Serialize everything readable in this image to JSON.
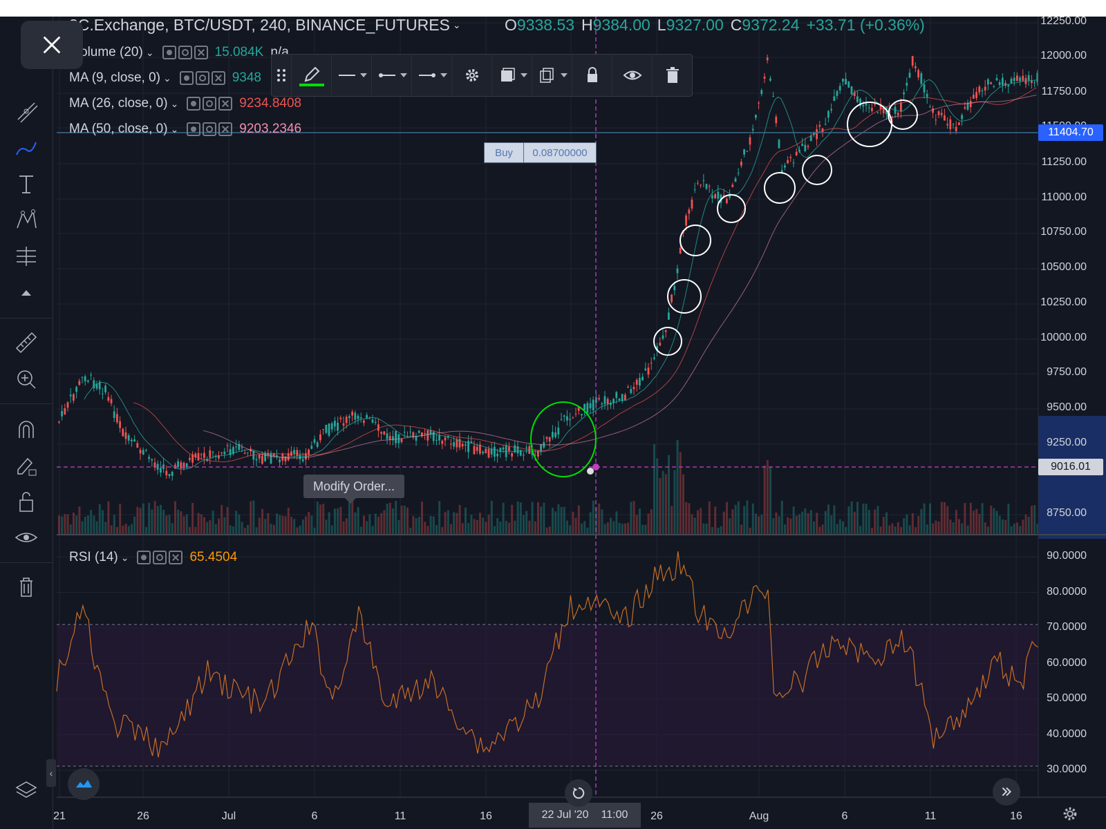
{
  "header": {
    "symbol_title": "3C.Exchange, BTC/USDT, 240, BINANCE_FUTURES",
    "ohlc": {
      "o_label": "O",
      "o": "9338.53",
      "h_label": "H",
      "h": "9384.00",
      "l_label": "L",
      "l": "9327.00",
      "c_label": "C",
      "c": "9372.24",
      "change": "+33.71 (+0.36%)"
    }
  },
  "legends": {
    "volume": {
      "label": "olume (20)",
      "value": "15.084K",
      "value2": "n/a"
    },
    "ma9": {
      "label": "MA (9, close, 0)",
      "value": "9348"
    },
    "ma26": {
      "label": "MA (26, close, 0)",
      "value": "9234.8408"
    },
    "ma50": {
      "label": "MA (50, close, 0)",
      "value": "9203.2346"
    },
    "rsi": {
      "label": "RSI (14)",
      "value": "65.4504"
    }
  },
  "order": {
    "side": "Buy",
    "quantity": "0.08700000",
    "modify_label": "Modify Order..."
  },
  "price_axis": [
    "12250.00",
    "12000.00",
    "11750.00",
    "11500.00",
    "11250.00",
    "11000.00",
    "10750.00",
    "10500.00",
    "10250.00",
    "10000.00",
    "9750.00",
    "9500.00",
    "9250.00",
    "8750.00"
  ],
  "price_tags": {
    "current": "11404.70",
    "order": "9016.01"
  },
  "rsi_axis": [
    "90.0000",
    "80.0000",
    "70.0000",
    "60.0000",
    "50.0000",
    "40.0000",
    "30.0000"
  ],
  "date_axis": [
    "21",
    "26",
    "Jul",
    "6",
    "11",
    "16",
    "26",
    "Aug",
    "6",
    "11",
    "16"
  ],
  "crosshair": {
    "date": "22 Jul '20",
    "time": "11:00"
  },
  "colors": {
    "bull": "#26a69a",
    "bear": "#ef5350",
    "background": "#131722",
    "order_line": "#9c27b0",
    "rsi_line": "#e67e22",
    "highlight_band": "#2962ff",
    "selection_circle": "#00e000"
  },
  "sidebar_tools": [
    "close-icon",
    "crosshair-icon",
    "trend-line-icon",
    "brush-icon",
    "text-icon",
    "pattern-icon",
    "fib-icon",
    "collapse-up-icon",
    "ruler-icon",
    "zoom-in-icon",
    "magnet-icon",
    "lock-draw-icon",
    "lock-icon",
    "eye-icon",
    "trash-icon",
    "layers-icon"
  ],
  "toolbar_tools": [
    "drag-handle-icon",
    "pencil-icon",
    "line-style-icon",
    "line-start-icon",
    "line-end-icon",
    "settings-icon",
    "fill-icon",
    "clone-icon",
    "lock-icon",
    "visibility-icon",
    "delete-icon"
  ]
}
